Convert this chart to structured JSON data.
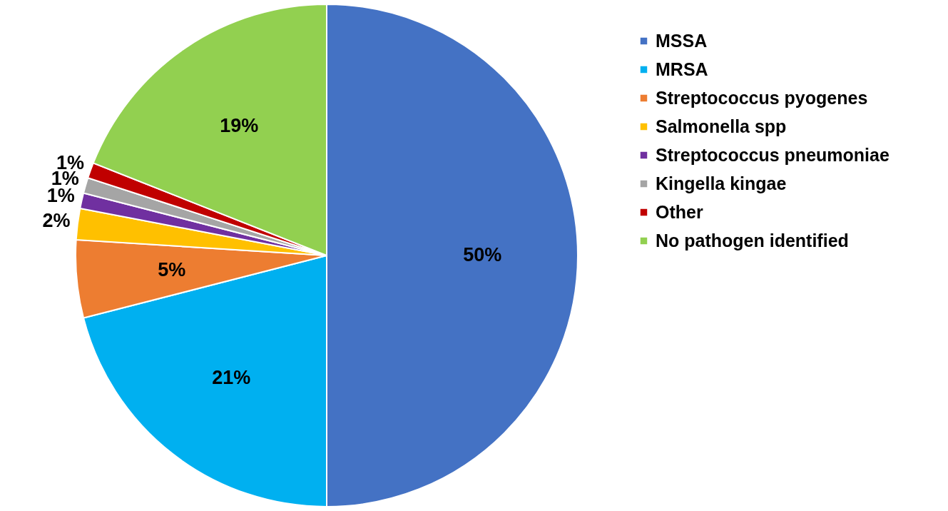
{
  "chart_data": {
    "type": "pie",
    "categories": [
      "MSSA",
      "MRSA",
      "Streptococcus pyogenes",
      "Salmonella spp",
      "Streptococcus pneumoniae",
      "Kingella kingae",
      "Other",
      "No pathogen identified"
    ],
    "values": [
      50,
      21,
      5,
      2,
      1,
      1,
      1,
      19
    ],
    "colors": [
      "#4472c4",
      "#00b0f0",
      "#ed7d31",
      "#ffc000",
      "#7030a0",
      "#a5a5a5",
      "#c00000",
      "#92d050"
    ],
    "value_labels": [
      "50%",
      "21%",
      "5%",
      "2%",
      "1%",
      "1%",
      "1%",
      "19%"
    ],
    "legend": "right"
  }
}
